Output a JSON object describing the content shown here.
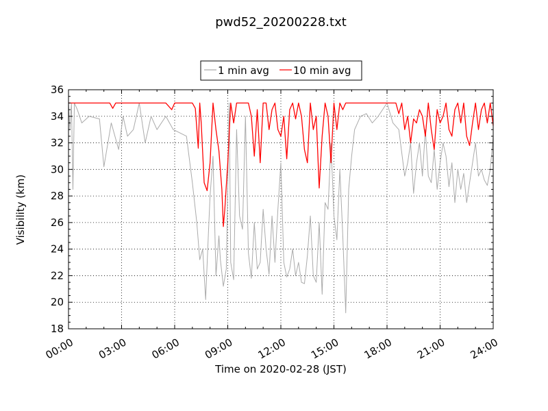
{
  "chart_data": {
    "type": "line",
    "title": "pwd52_20200228.txt",
    "xlabel": "Time on 2020-02-28 (JST)",
    "ylabel": "Visibility (km)",
    "xlim": [
      "00:00",
      "24:00"
    ],
    "ylim": [
      18,
      36
    ],
    "x_ticks": [
      "00:00",
      "03:00",
      "06:00",
      "09:00",
      "12:00",
      "15:00",
      "18:00",
      "21:00",
      "24:00"
    ],
    "y_ticks": [
      18,
      20,
      22,
      24,
      26,
      28,
      30,
      32,
      34,
      36
    ],
    "grid": true,
    "legend_position": "top-center",
    "series": [
      {
        "name": "1 min avg",
        "color": "#aaaaaa",
        "x": [
          "00:00",
          "00:05",
          "00:10",
          "00:15",
          "00:20",
          "00:30",
          "00:45",
          "01:10",
          "01:45",
          "02:00",
          "02:25",
          "02:50",
          "03:05",
          "03:20",
          "03:40",
          "04:00",
          "04:20",
          "04:40",
          "05:00",
          "05:30",
          "05:55",
          "06:40",
          "07:00",
          "07:15",
          "07:25",
          "07:35",
          "07:45",
          "07:55",
          "08:00",
          "08:10",
          "08:20",
          "08:30",
          "08:35",
          "08:45",
          "08:55",
          "09:05",
          "09:10",
          "09:20",
          "09:30",
          "09:40",
          "09:50",
          "10:00",
          "10:10",
          "10:20",
          "10:30",
          "10:40",
          "10:50",
          "11:00",
          "11:10",
          "11:20",
          "11:30",
          "11:40",
          "11:50",
          "12:00",
          "12:10",
          "12:20",
          "12:30",
          "12:40",
          "12:50",
          "13:00",
          "13:10",
          "13:20",
          "13:30",
          "13:40",
          "13:50",
          "14:00",
          "14:10",
          "14:20",
          "14:30",
          "14:40",
          "14:50",
          "15:00",
          "15:10",
          "15:20",
          "15:30",
          "15:40",
          "15:50",
          "16:00",
          "16:10",
          "16:30",
          "16:50",
          "17:10",
          "17:30",
          "18:00",
          "18:20",
          "18:40",
          "19:00",
          "19:10",
          "19:20",
          "19:30",
          "19:40",
          "19:50",
          "20:00",
          "20:10",
          "20:20",
          "20:30",
          "20:40",
          "20:50",
          "21:00",
          "21:10",
          "21:20",
          "21:30",
          "21:40",
          "21:50",
          "22:00",
          "22:10",
          "22:20",
          "22:30",
          "22:40",
          "22:50",
          "23:00",
          "23:10",
          "23:20",
          "23:30",
          "23:40",
          "23:50",
          "24:00"
        ],
        "y": [
          35,
          33.0,
          35,
          28.5,
          35,
          34.5,
          33.5,
          34.0,
          33.8,
          30.2,
          33.5,
          31.5,
          34.0,
          32.5,
          33.0,
          35,
          32.0,
          34.0,
          33.0,
          34.0,
          33.0,
          32.5,
          29.0,
          26.0,
          23.2,
          24.0,
          20.2,
          25.5,
          28.0,
          31.0,
          22.0,
          25.0,
          23.2,
          21.2,
          22.5,
          35,
          23.0,
          21.7,
          33.0,
          26.5,
          25.5,
          34.0,
          23.7,
          21.8,
          26.0,
          22.5,
          23.0,
          27.0,
          24.0,
          22.1,
          26.5,
          23.0,
          27.0,
          30.5,
          23.0,
          21.9,
          22.5,
          24.0,
          22.0,
          23.0,
          21.5,
          21.4,
          23.5,
          26.5,
          22.0,
          21.5,
          26.0,
          20.6,
          27.5,
          27.0,
          32.0,
          26.5,
          24.7,
          30.0,
          25.0,
          19.2,
          28.5,
          31.0,
          33.0,
          34.0,
          34.2,
          33.5,
          34.0,
          35,
          33.5,
          33.0,
          29.5,
          30.5,
          32.0,
          28.2,
          30.5,
          32.0,
          29.5,
          33.0,
          29.5,
          29.0,
          31.5,
          28.5,
          30.5,
          32.0,
          31.0,
          28.7,
          30.5,
          27.5,
          30.0,
          28.5,
          29.7,
          27.5,
          29.0,
          30.5,
          32.0,
          29.5,
          30.0,
          29.2,
          28.8,
          30.0,
          32.5
        ]
      },
      {
        "name": "10 min avg",
        "color": "#ff0000",
        "x": [
          "00:00",
          "02:20",
          "02:30",
          "02:40",
          "03:00",
          "05:30",
          "05:50",
          "06:00",
          "06:20",
          "06:30",
          "07:00",
          "07:10",
          "07:20",
          "07:25",
          "07:30",
          "07:40",
          "07:50",
          "08:00",
          "08:10",
          "08:20",
          "08:30",
          "08:40",
          "08:45",
          "08:50",
          "09:00",
          "09:10",
          "09:20",
          "09:30",
          "09:40",
          "10:00",
          "10:10",
          "10:20",
          "10:30",
          "10:40",
          "10:50",
          "11:00",
          "11:10",
          "11:20",
          "11:30",
          "11:40",
          "11:50",
          "12:00",
          "12:10",
          "12:20",
          "12:30",
          "12:40",
          "12:50",
          "13:00",
          "13:10",
          "13:20",
          "13:30",
          "13:40",
          "13:50",
          "14:00",
          "14:10",
          "14:20",
          "14:30",
          "14:40",
          "14:50",
          "15:00",
          "15:10",
          "15:20",
          "15:30",
          "15:40",
          "16:00",
          "16:20",
          "16:40",
          "17:00",
          "17:30",
          "18:00",
          "18:30",
          "18:40",
          "18:50",
          "19:00",
          "19:10",
          "19:20",
          "19:30",
          "19:40",
          "19:50",
          "20:00",
          "20:10",
          "20:20",
          "20:30",
          "20:40",
          "20:50",
          "21:00",
          "21:10",
          "21:20",
          "21:30",
          "21:40",
          "21:50",
          "22:00",
          "22:10",
          "22:20",
          "22:30",
          "22:40",
          "22:50",
          "23:00",
          "23:10",
          "23:20",
          "23:30",
          "23:40",
          "23:50",
          "24:00"
        ],
        "y": [
          35,
          35,
          34.6,
          35,
          35,
          35,
          34.5,
          35,
          35,
          35,
          35,
          34.6,
          31.6,
          35,
          33.5,
          29.0,
          28.4,
          30.5,
          35,
          33.0,
          31.4,
          28.5,
          25.7,
          27.0,
          30.5,
          35,
          33.5,
          35,
          35,
          35,
          35,
          34.0,
          31.0,
          34.5,
          30.5,
          35,
          35,
          33.0,
          34.5,
          35,
          33.0,
          32.5,
          34.0,
          30.8,
          34.5,
          35,
          33.8,
          35,
          34.0,
          31.5,
          30.5,
          35,
          33.0,
          34.0,
          28.6,
          32.5,
          35,
          34.0,
          30.5,
          35,
          33.0,
          35,
          34.5,
          35,
          35,
          35,
          35,
          35,
          35,
          35,
          35,
          34.2,
          35,
          33.0,
          34.0,
          32.0,
          33.8,
          33.5,
          34.5,
          34.0,
          32.5,
          35,
          33.0,
          31.5,
          34.5,
          33.5,
          34.0,
          35,
          33.0,
          32.5,
          34.5,
          35,
          33.5,
          35,
          32.5,
          31.8,
          33.5,
          35,
          33.0,
          34.5,
          35,
          33.5,
          35,
          33.3
        ]
      }
    ]
  }
}
